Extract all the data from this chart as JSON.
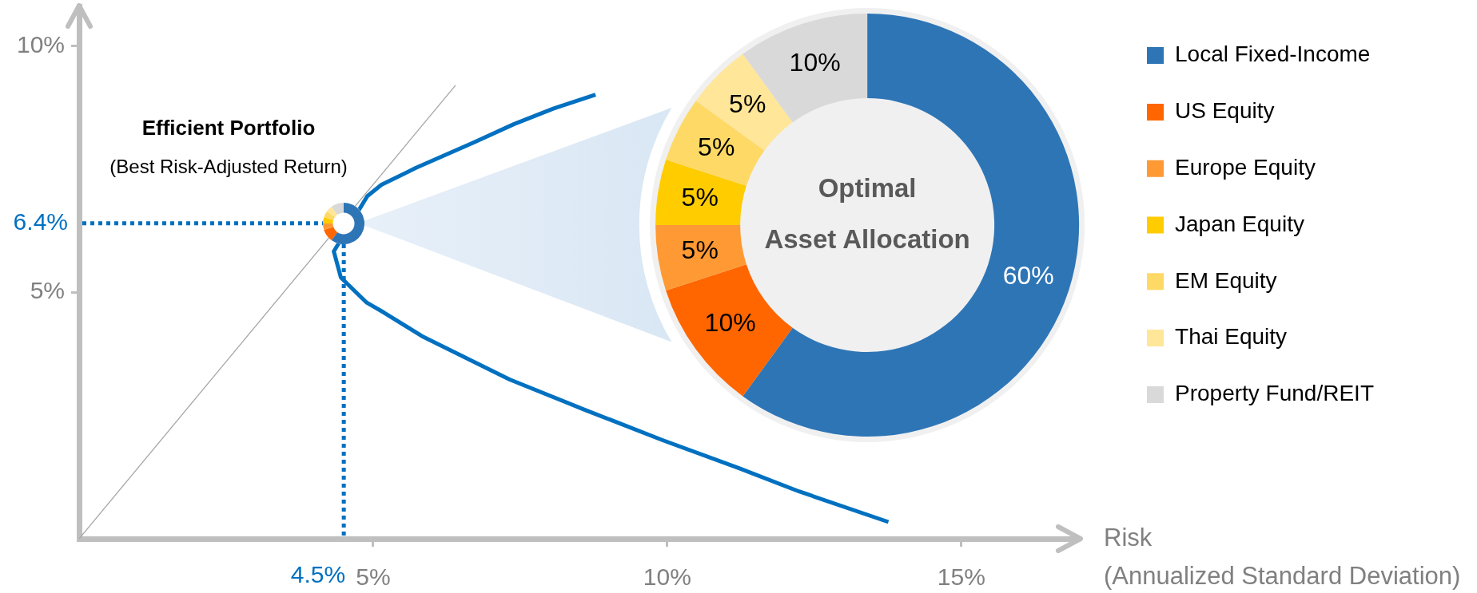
{
  "chart_data": [
    {
      "type": "line",
      "xlabel": "Risk\n(Annualized Standard Deviation)",
      "xlim": [
        0,
        17
      ],
      "ylim": [
        0,
        10.8
      ],
      "xticks": [
        {
          "value": 5,
          "label": "5%"
        },
        {
          "value": 10,
          "label": "10%"
        },
        {
          "value": 15,
          "label": "15%"
        }
      ],
      "yticks": [
        {
          "value": 5,
          "label": "5%"
        },
        {
          "value": 10,
          "label": "10%"
        }
      ],
      "series": [
        {
          "color": "#0070c0",
          "x": [
            8.78,
            8.07,
            7.39,
            6.71,
            5.72,
            5.14,
            4.9,
            4.33,
            4.45,
            4.89,
            5.18,
            5.83,
            7.32,
            8.61,
            9.92,
            11.22,
            12.24,
            13.76
          ],
          "values": [
            9.01,
            8.73,
            8.41,
            8.04,
            7.52,
            7.18,
            6.95,
            5.83,
            5.3,
            4.79,
            4.59,
            4.11,
            3.23,
            2.61,
            2.0,
            1.43,
            0.96,
            0.34
          ]
        },
        {
          "color": "#a6a6a6",
          "x": [
            0,
            6.4
          ],
          "values": [
            0,
            9.2
          ]
        }
      ],
      "ref_lines": [
        {
          "axis": "x",
          "value": 4.5,
          "label": "4.5%",
          "color": "#0070c0",
          "line_style": "dotted"
        },
        {
          "axis": "y",
          "value": 6.4,
          "label": "6.4%",
          "color": "#0070c0",
          "line_style": "dotted"
        }
      ],
      "annotations": [
        "Efficient Portfolio",
        "(Best Risk-Adjusted Return)"
      ]
    },
    {
      "type": "donut",
      "title": "Optimal\nAsset Allocation",
      "categories": [
        "Local Fixed-Income",
        "US Equity",
        "Europe Equity",
        "Japan Equity",
        "EM Equity",
        "Thai Equity",
        "Property Fund/REIT"
      ],
      "values": [
        60,
        10,
        5,
        5,
        5,
        5,
        10
      ],
      "colors": [
        "#2e75b6",
        "#ff6600",
        "#ff9933",
        "#ffcc00",
        "#ffd966",
        "#ffe699",
        "#d9d9d9"
      ],
      "value_labels": [
        "60%",
        "10%",
        "5%",
        "5%",
        "5%",
        "5%",
        "10%"
      ],
      "legend": "right"
    }
  ]
}
